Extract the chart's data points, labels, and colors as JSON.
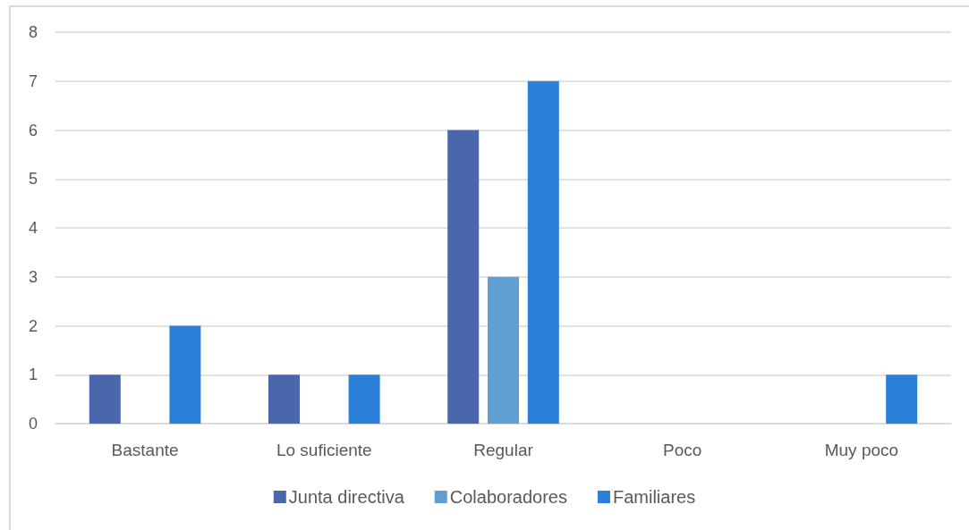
{
  "chart_data": {
    "type": "bar",
    "categories": [
      "Bastante",
      "Lo suficiente",
      "Regular",
      "Poco",
      "Muy poco"
    ],
    "series": [
      {
        "name": "Junta directiva",
        "color": "#4a66ac",
        "values": [
          1,
          1,
          6,
          0,
          0
        ]
      },
      {
        "name": "Colaboradores",
        "color": "#619fd3",
        "values": [
          0,
          0,
          3,
          0,
          0
        ]
      },
      {
        "name": "Familiares",
        "color": "#2b7fd8",
        "values": [
          2,
          1,
          7,
          0,
          1
        ]
      }
    ],
    "ylim": [
      0,
      8
    ],
    "yticks": [
      0,
      1,
      2,
      3,
      4,
      5,
      6,
      7,
      8
    ],
    "grid": "y",
    "legend": "bottom"
  }
}
